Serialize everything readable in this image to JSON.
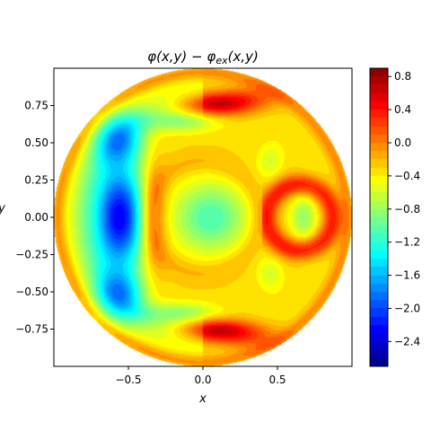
{
  "chart_data": {
    "type": "heatmap",
    "title": "φ(x,y) − φ_ex(x,y)",
    "title_parts": {
      "a": "φ",
      "b": "(x,y) − ",
      "c": "φ",
      "sub": "ex",
      "d": "(x,y)"
    },
    "xlabel": "x",
    "ylabel": "y",
    "xlim": [
      -1.0,
      1.0
    ],
    "ylim": [
      -1.0,
      1.0
    ],
    "x_ticks": [
      -0.5,
      0.0,
      0.5
    ],
    "x_tick_labels": [
      "−0.5",
      "0.0",
      "0.5"
    ],
    "y_ticks": [
      -0.75,
      -0.5,
      -0.25,
      0.0,
      0.25,
      0.5,
      0.75
    ],
    "y_tick_labels": [
      "−0.75",
      "−0.50",
      "−0.25",
      "0.00",
      "0.25",
      "0.50",
      "0.75"
    ],
    "domain": "unit disk",
    "colormap": "jet",
    "color_range": [
      -2.7,
      0.9
    ],
    "colorbar_ticks": [
      0.8,
      0.4,
      0.0,
      -0.4,
      -0.8,
      -1.2,
      -1.6,
      -2.0,
      -2.4
    ],
    "colorbar_tick_labels": [
      "0.8",
      "0.4",
      "0.0",
      "−0.4",
      "−0.8",
      "−1.2",
      "−1.6",
      "−2.0",
      "−2.4"
    ],
    "levels": 36,
    "grid": false,
    "features": [
      {
        "kind": "min",
        "x": -0.56,
        "y": 0.0,
        "value": -2.6
      },
      {
        "kind": "max",
        "x": 0.1,
        "y": 0.76,
        "value": 0.85
      },
      {
        "kind": "max",
        "x": 0.1,
        "y": -0.76,
        "value": 0.85
      },
      {
        "kind": "ring",
        "x": 0.65,
        "y": 0.0,
        "value": 0.4
      },
      {
        "kind": "center",
        "x": 0.05,
        "y": 0.0,
        "value": -1.0
      }
    ]
  }
}
